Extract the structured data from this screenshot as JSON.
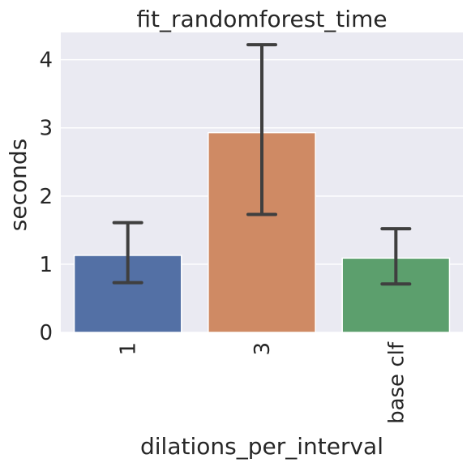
{
  "chart_data": {
    "type": "bar",
    "title": "fit_randomforest_time",
    "xlabel": "dilations_per_interval",
    "ylabel": "seconds",
    "categories": [
      "1",
      "3",
      "base clf"
    ],
    "values": [
      1.13,
      2.93,
      1.09
    ],
    "error_low": [
      0.73,
      1.73,
      0.71
    ],
    "error_high": [
      1.61,
      4.22,
      1.52
    ],
    "colors": [
      "#5370a5",
      "#cf8a64",
      "#5c9f6d"
    ],
    "ylim": [
      0,
      4.4
    ],
    "yticks": [
      0,
      1,
      2,
      3,
      4
    ],
    "grid": true,
    "background": "#eaeaf2"
  }
}
